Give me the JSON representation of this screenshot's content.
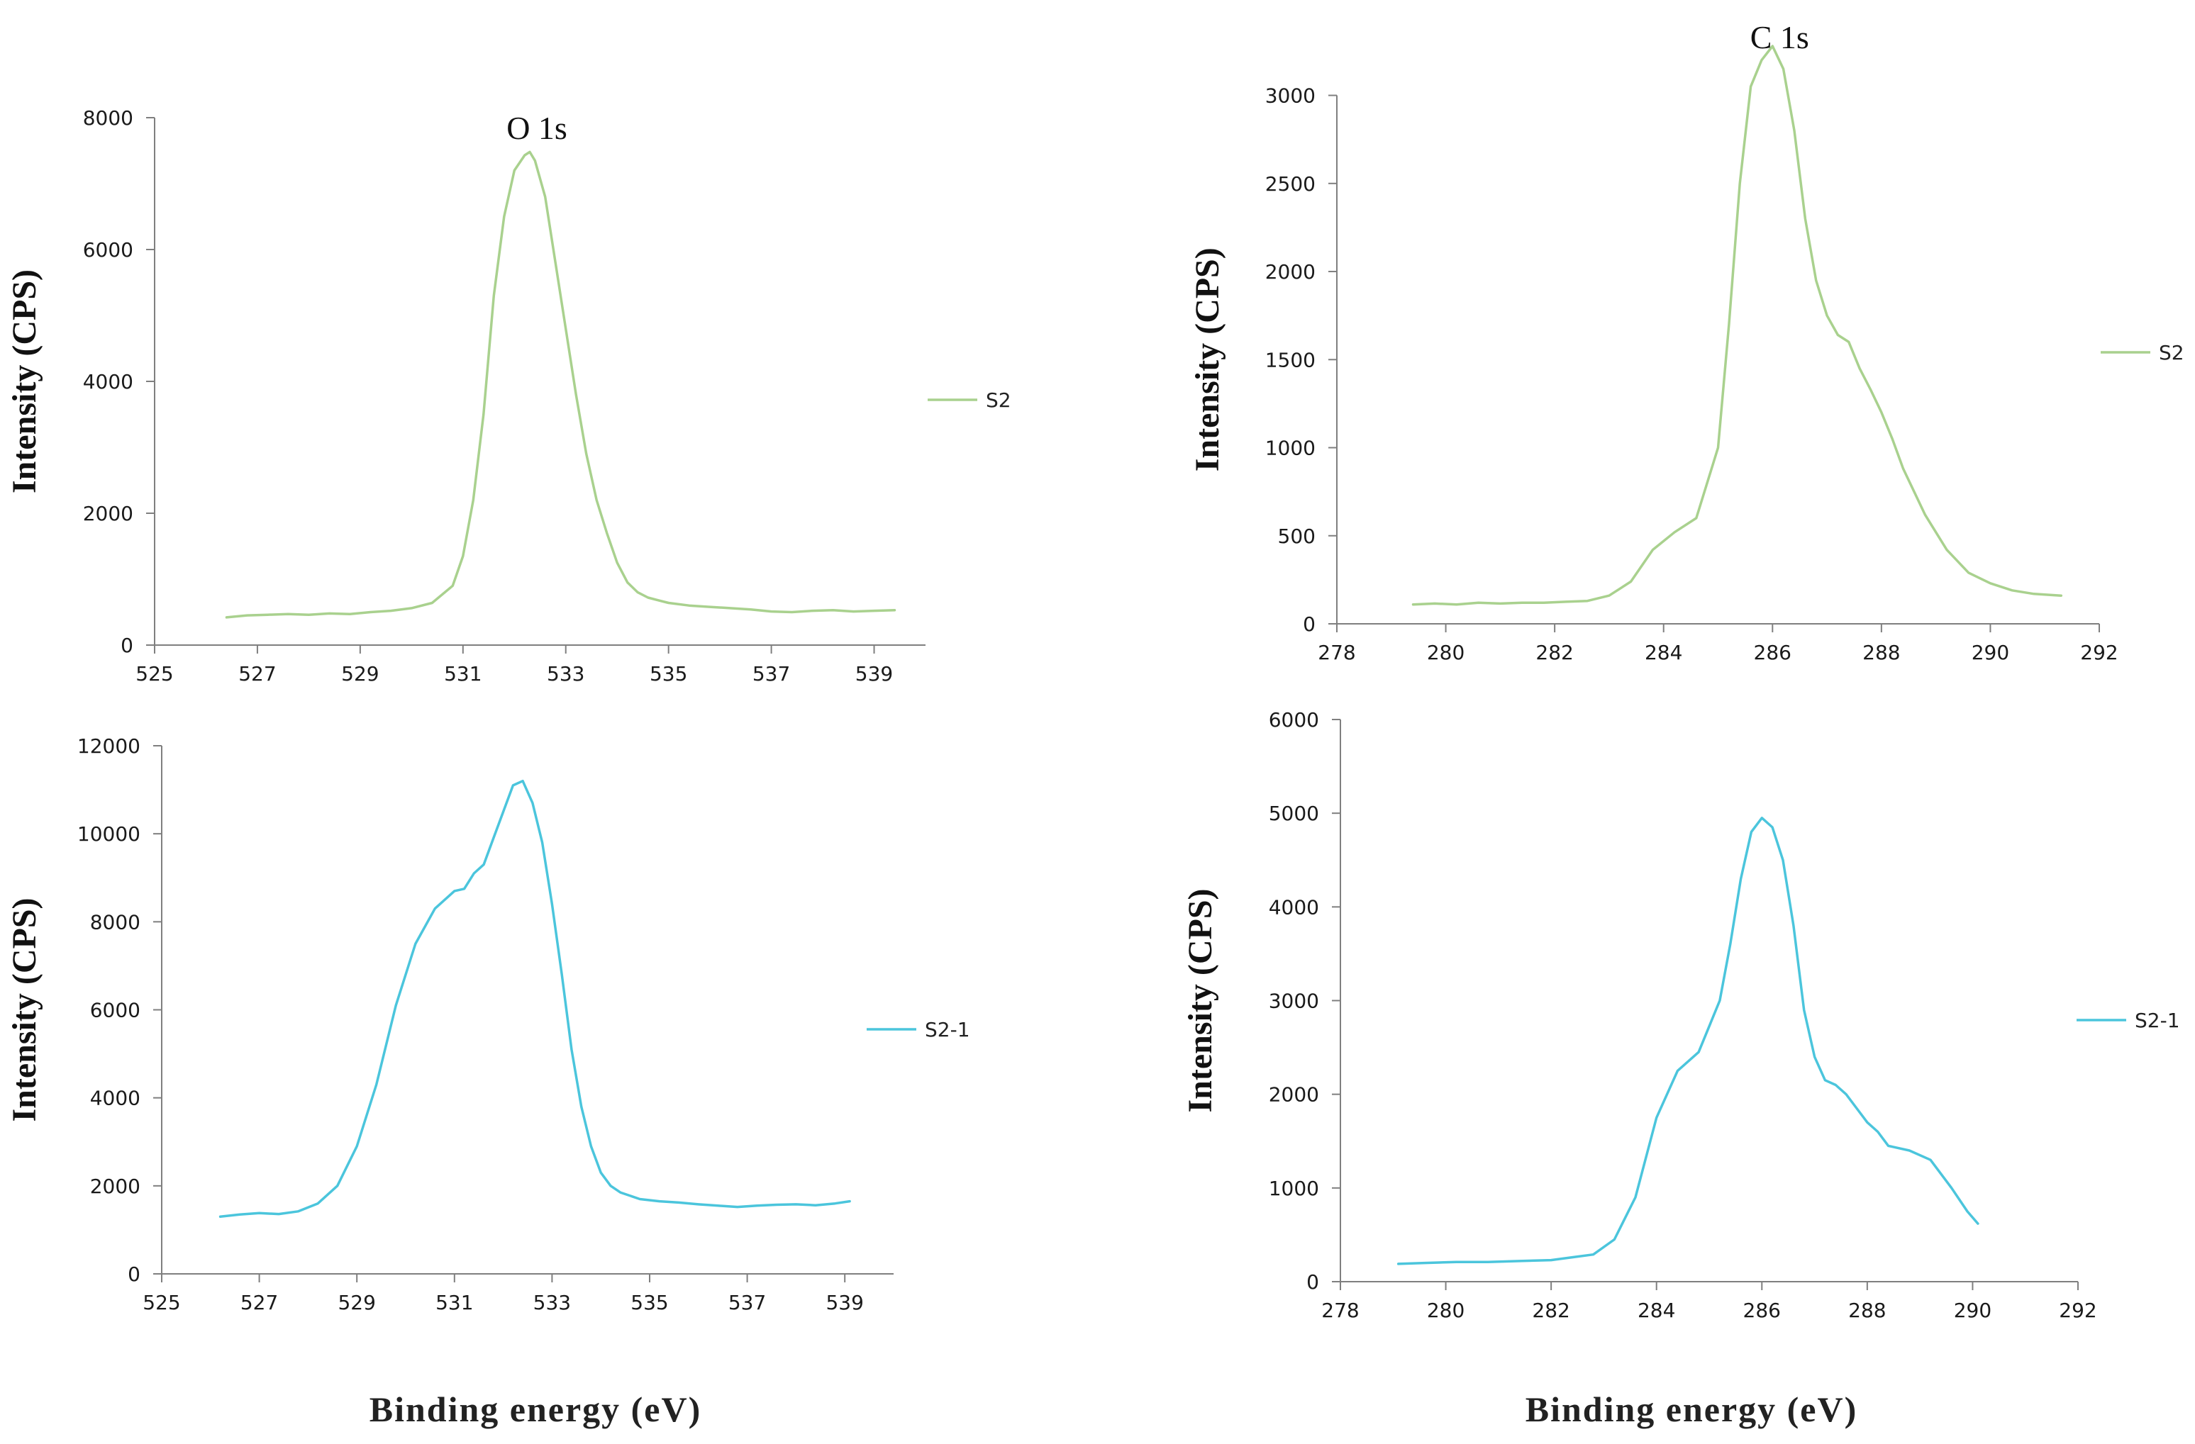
{
  "figure": {
    "xlabel": "Binding energy (eV)"
  },
  "colors": {
    "S2": "#a9d18e",
    "S2-1": "#4bc5dc",
    "axis": "#7f7f7f"
  },
  "chart_data": [
    {
      "id": "tl",
      "type": "line",
      "title": "O 1s",
      "xlabel": "",
      "ylabel": "Intensity (CPS)",
      "xlim": [
        525,
        540
      ],
      "ylim": [
        0,
        8000
      ],
      "xticks": [
        525,
        527,
        529,
        531,
        533,
        535,
        537,
        539
      ],
      "yticks": [
        0,
        2000,
        4000,
        6000,
        8000
      ],
      "legend": "right",
      "series": [
        {
          "name": "S2",
          "color_key": "S2",
          "x": [
            526.4,
            526.8,
            527.2,
            527.6,
            528.0,
            528.4,
            528.8,
            529.2,
            529.6,
            530.0,
            530.4,
            530.8,
            531.0,
            531.2,
            531.4,
            531.6,
            531.8,
            532.0,
            532.2,
            532.3,
            532.4,
            532.6,
            532.8,
            533.0,
            533.2,
            533.4,
            533.6,
            533.8,
            534.0,
            534.2,
            534.4,
            534.6,
            534.8,
            535.0,
            535.4,
            535.8,
            536.2,
            536.6,
            537.0,
            537.4,
            537.8,
            538.2,
            538.6,
            539.0,
            539.4
          ],
          "y": [
            420,
            450,
            460,
            470,
            460,
            480,
            470,
            500,
            520,
            560,
            640,
            900,
            1350,
            2200,
            3500,
            5300,
            6500,
            7200,
            7430,
            7480,
            7350,
            6800,
            5800,
            4800,
            3800,
            2900,
            2200,
            1700,
            1250,
            950,
            800,
            720,
            680,
            640,
            600,
            580,
            560,
            540,
            510,
            500,
            520,
            530,
            510,
            520,
            530
          ]
        }
      ]
    },
    {
      "id": "tr",
      "type": "line",
      "title": "C 1s",
      "xlabel": "",
      "ylabel": "Intensity (CPS)",
      "xlim": [
        278,
        292
      ],
      "ylim": [
        0,
        3300
      ],
      "xticks": [
        278,
        280,
        282,
        284,
        286,
        288,
        290,
        292
      ],
      "yticks": [
        0,
        500,
        1000,
        1500,
        2000,
        2500,
        3000
      ],
      "legend": "right",
      "series": [
        {
          "name": "S2",
          "color_key": "S2",
          "x": [
            279.4,
            279.8,
            280.2,
            280.6,
            281.0,
            281.4,
            281.8,
            282.2,
            282.6,
            283.0,
            283.4,
            283.8,
            284.2,
            284.6,
            285.0,
            285.2,
            285.4,
            285.6,
            285.8,
            286.0,
            286.2,
            286.4,
            286.6,
            286.8,
            287.0,
            287.2,
            287.4,
            287.6,
            287.8,
            288.0,
            288.2,
            288.4,
            288.8,
            289.2,
            289.6,
            290.0,
            290.4,
            290.8,
            291.3
          ],
          "y": [
            110,
            115,
            110,
            120,
            115,
            120,
            120,
            125,
            130,
            160,
            240,
            420,
            520,
            600,
            1000,
            1700,
            2500,
            3050,
            3200,
            3280,
            3150,
            2800,
            2300,
            1950,
            1750,
            1640,
            1600,
            1450,
            1330,
            1200,
            1050,
            880,
            620,
            420,
            290,
            230,
            190,
            170,
            160
          ]
        }
      ]
    },
    {
      "id": "bl",
      "type": "line",
      "title": "",
      "xlabel": "",
      "ylabel": "Intensity (CPS)",
      "xlim": [
        525,
        540
      ],
      "ylim": [
        0,
        12000
      ],
      "xticks": [
        525,
        527,
        529,
        531,
        533,
        535,
        537,
        539
      ],
      "yticks": [
        0,
        2000,
        4000,
        6000,
        8000,
        10000,
        12000
      ],
      "legend": "right",
      "series": [
        {
          "name": "S2-1",
          "color_key": "S2-1",
          "x": [
            526.2,
            526.6,
            527.0,
            527.4,
            527.8,
            528.2,
            528.6,
            529.0,
            529.4,
            529.8,
            530.2,
            530.6,
            531.0,
            531.2,
            531.4,
            531.6,
            531.8,
            532.0,
            532.2,
            532.4,
            532.6,
            532.8,
            533.0,
            533.2,
            533.4,
            533.6,
            533.8,
            534.0,
            534.2,
            534.4,
            534.8,
            535.2,
            535.6,
            536.0,
            536.4,
            536.8,
            537.2,
            537.6,
            538.0,
            538.4,
            538.8,
            539.1
          ],
          "y": [
            1300,
            1350,
            1380,
            1360,
            1420,
            1600,
            2000,
            2900,
            4300,
            6100,
            7500,
            8300,
            8700,
            8750,
            9100,
            9300,
            9900,
            10500,
            11100,
            11200,
            10700,
            9800,
            8400,
            6800,
            5100,
            3800,
            2900,
            2300,
            2000,
            1850,
            1700,
            1650,
            1620,
            1580,
            1550,
            1520,
            1550,
            1570,
            1580,
            1560,
            1600,
            1650
          ]
        }
      ]
    },
    {
      "id": "br",
      "type": "line",
      "title": "",
      "xlabel": "",
      "ylabel": "Intensity (CPS)",
      "xlim": [
        278,
        292
      ],
      "ylim": [
        0,
        6000
      ],
      "xticks": [
        278,
        280,
        282,
        284,
        286,
        288,
        290,
        292
      ],
      "yticks": [
        0,
        1000,
        2000,
        3000,
        4000,
        5000,
        6000
      ],
      "legend": "right",
      "series": [
        {
          "name": "S2-1",
          "color_key": "S2-1",
          "x": [
            279.1,
            279.6,
            280.2,
            280.8,
            281.4,
            282.0,
            282.4,
            282.8,
            283.2,
            283.6,
            284.0,
            284.4,
            284.8,
            285.2,
            285.4,
            285.6,
            285.8,
            286.0,
            286.2,
            286.4,
            286.6,
            286.8,
            287.0,
            287.2,
            287.4,
            287.6,
            287.8,
            288.0,
            288.2,
            288.4,
            288.8,
            289.2,
            289.6,
            289.9,
            290.1
          ],
          "y": [
            190,
            200,
            210,
            210,
            220,
            230,
            260,
            290,
            450,
            900,
            1750,
            2250,
            2450,
            3000,
            3600,
            4300,
            4800,
            4950,
            4850,
            4500,
            3800,
            2900,
            2400,
            2150,
            2100,
            2000,
            1850,
            1700,
            1600,
            1450,
            1400,
            1300,
            1000,
            750,
            620
          ]
        }
      ]
    }
  ]
}
